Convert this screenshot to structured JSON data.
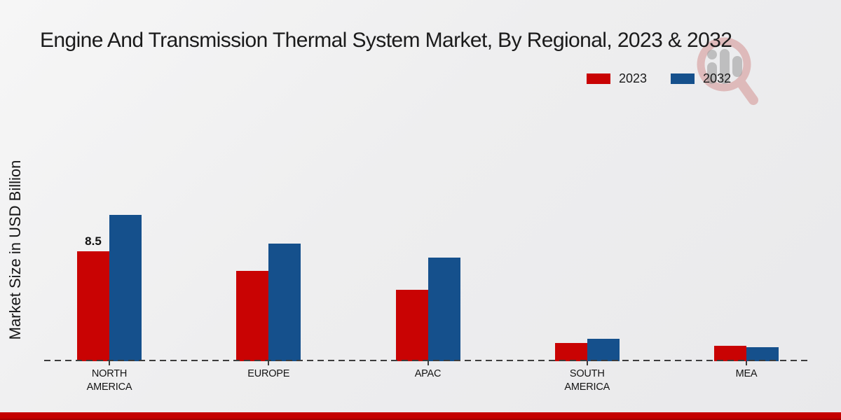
{
  "page": {
    "title": "Engine And Transmission Thermal System Market, By Regional, 2023 & 2032",
    "y_axis_label": "Market Size in USD Billion"
  },
  "legend": {
    "items": [
      {
        "label": "2023",
        "color": "#c90303"
      },
      {
        "label": "2032",
        "color": "#15508c"
      }
    ]
  },
  "watermark": {
    "icon": "magnifier-bar-chart-logo",
    "ring_color": "#d99090",
    "bars_color": "#ababab"
  },
  "footer": {
    "bar_color": "#c40000",
    "bar_edge_color": "#990000"
  },
  "chart_data": {
    "type": "bar",
    "title": "Engine And Transmission Thermal System Market, By Regional, 2023 & 2032",
    "ylabel": "Market Size in USD Billion",
    "xlabel": "",
    "categories": [
      "NORTH AMERICA",
      "EUROPE",
      "APAC",
      "SOUTH AMERICA",
      "MEA"
    ],
    "category_label_lines": [
      [
        "NORTH",
        "AMERICA"
      ],
      [
        "EUROPE"
      ],
      [
        "APAC"
      ],
      [
        "SOUTH",
        "AMERICA"
      ],
      [
        "MEA"
      ]
    ],
    "series": [
      {
        "name": "2023",
        "color": "#c90303",
        "values": [
          8.5,
          7.0,
          5.5,
          1.4,
          1.2
        ]
      },
      {
        "name": "2032",
        "color": "#15508c",
        "values": [
          11.3,
          9.1,
          8.0,
          1.75,
          1.1
        ]
      }
    ],
    "data_labels": [
      {
        "series": "2023",
        "category_index": 0,
        "text": "8.5"
      }
    ],
    "ylim": [
      0,
      12
    ],
    "grid": false,
    "y_tick_labels_visible": false,
    "baseline": {
      "style": "dashed",
      "color": "#3d3d3d"
    },
    "legend_position": "top-right"
  }
}
